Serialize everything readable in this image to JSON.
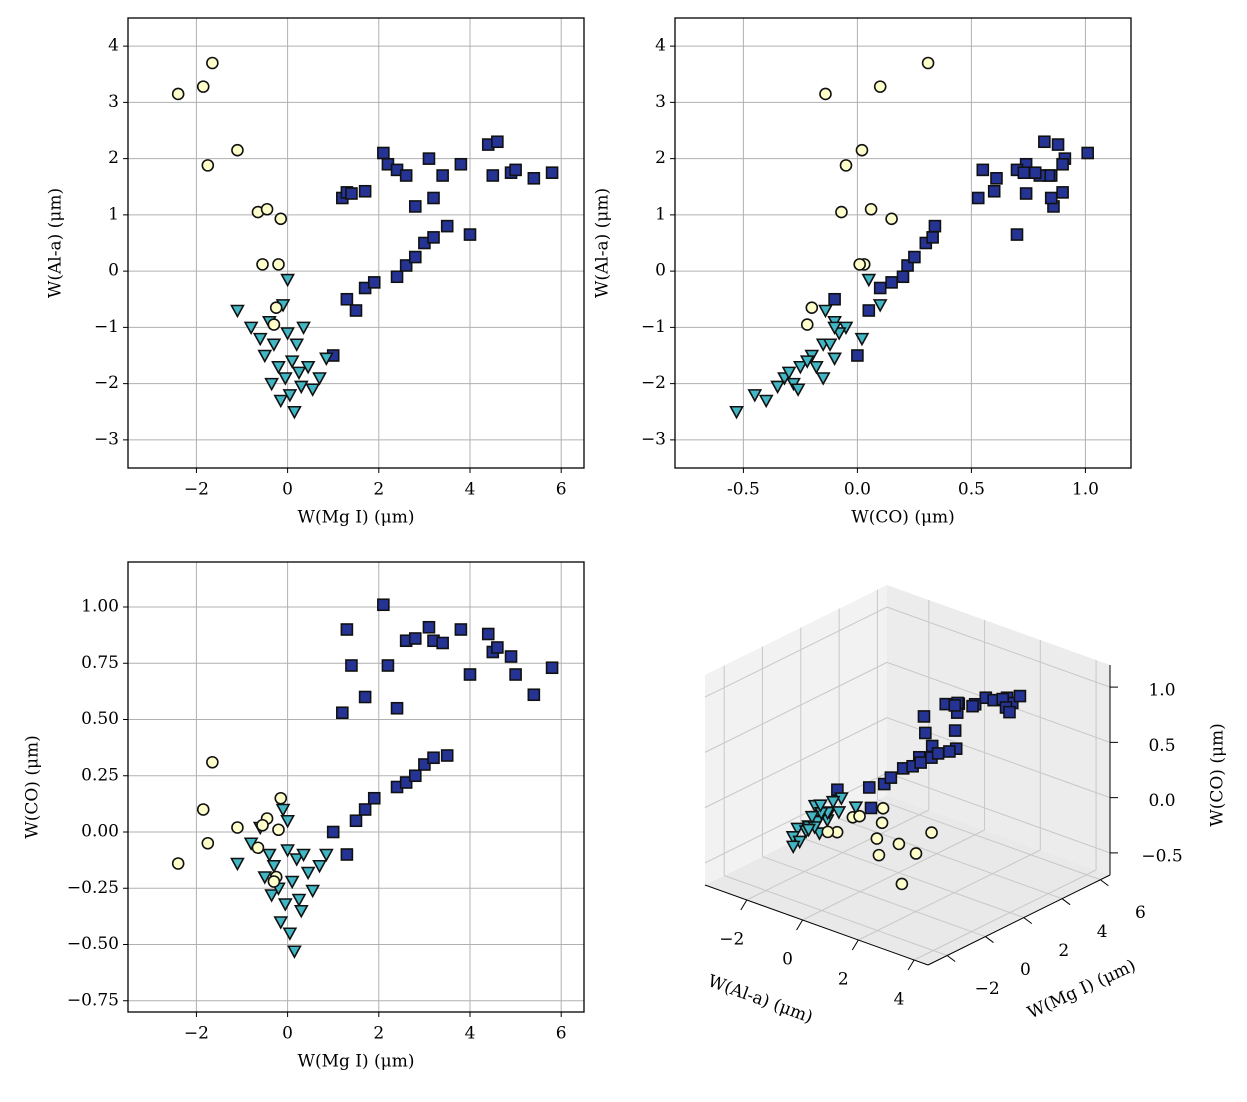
{
  "chart_data": [
    {
      "type": "scatter",
      "xlabel": "W(Mg I) (μm)",
      "ylabel": "W(Al-a) (μm)",
      "xlim": [
        -3.5,
        6.5
      ],
      "xticks": [
        {
          "value": -2,
          "label": "−2"
        },
        0,
        2,
        4,
        6
      ],
      "ylim": [
        -3.5,
        4.5
      ],
      "yticks": [
        {
          "value": -3,
          "label": "−3"
        },
        {
          "value": -2,
          "label": "−2"
        },
        {
          "value": -1,
          "label": "−1"
        },
        0,
        1,
        2,
        3,
        4
      ],
      "grid": true,
      "series": [
        {
          "color": "#253494",
          "marker": "square",
          "x": [
            1.2,
            1.3,
            1.4,
            1.7,
            2.1,
            2.2,
            2.4,
            2.6,
            2.8,
            3.1,
            3.2,
            3.4,
            3.8,
            4.0,
            4.4,
            4.5,
            4.6,
            4.9,
            5.0,
            5.4,
            5.8,
            1.0,
            1.3,
            1.5,
            1.7,
            1.9,
            2.4,
            2.6,
            2.8,
            3.0,
            3.2,
            3.5
          ],
          "values": [
            1.3,
            1.4,
            1.38,
            1.42,
            2.1,
            1.9,
            1.8,
            1.7,
            1.15,
            2.0,
            1.3,
            1.7,
            1.9,
            0.65,
            2.25,
            1.7,
            2.3,
            1.75,
            1.8,
            1.65,
            1.75,
            -1.5,
            -0.5,
            -0.7,
            -0.3,
            -0.2,
            -0.1,
            0.1,
            0.25,
            0.5,
            0.6,
            0.8
          ]
        },
        {
          "color": "#41b6c4",
          "marker": "triangle",
          "x": [
            -1.1,
            -0.8,
            -0.6,
            -0.5,
            -0.4,
            -0.35,
            -0.3,
            -0.2,
            -0.15,
            -0.1,
            -0.05,
            0.0,
            0.0,
            0.05,
            0.1,
            0.15,
            0.2,
            0.25,
            0.3,
            0.35,
            0.45,
            0.55,
            0.7,
            0.85
          ],
          "values": [
            -0.7,
            -1.0,
            -1.2,
            -1.5,
            -0.9,
            -2.0,
            -1.3,
            -1.7,
            -2.3,
            -0.6,
            -1.9,
            -1.1,
            -0.15,
            -2.2,
            -1.6,
            -2.5,
            -1.3,
            -1.8,
            -2.05,
            -1.0,
            -1.7,
            -2.1,
            -1.9,
            -1.55
          ]
        },
        {
          "color": "#ffffcc",
          "marker": "circle",
          "x": [
            -2.4,
            -1.85,
            -1.65,
            -1.75,
            -1.1,
            -0.65,
            -0.45,
            -0.15,
            -0.55,
            -0.2,
            -0.25,
            -0.3
          ],
          "values": [
            3.15,
            3.28,
            3.7,
            1.88,
            2.15,
            1.05,
            1.1,
            0.93,
            0.12,
            0.12,
            -0.65,
            -0.95
          ]
        }
      ]
    },
    {
      "type": "scatter",
      "xlabel": "W(CO) (μm)",
      "ylabel": "W(Al-a) (μm)",
      "xlim": [
        -0.8,
        1.2
      ],
      "xticks": [
        -0.5,
        {
          "value": 0,
          "label": "0.0"
        },
        0.5,
        {
          "value": 1,
          "label": "1.0"
        }
      ],
      "ylim": [
        -3.5,
        4.5
      ],
      "yticks": [
        {
          "value": -3,
          "label": "−3"
        },
        {
          "value": -2,
          "label": "−2"
        },
        {
          "value": -1,
          "label": "−1"
        },
        0,
        1,
        2,
        3,
        4
      ],
      "grid": true,
      "series": [
        {
          "color": "#253494",
          "marker": "square",
          "x": [
            0.53,
            0.9,
            0.74,
            0.6,
            1.01,
            0.74,
            0.55,
            0.85,
            0.86,
            0.91,
            0.85,
            0.84,
            0.9,
            0.7,
            0.88,
            0.8,
            0.82,
            0.78,
            0.7,
            0.61,
            0.73,
            0.0,
            -0.1,
            0.05,
            0.1,
            0.15,
            0.2,
            0.22,
            0.25,
            0.3,
            0.33,
            0.34
          ],
          "values": [
            1.3,
            1.4,
            1.38,
            1.42,
            2.1,
            1.9,
            1.8,
            1.7,
            1.15,
            2.0,
            1.3,
            1.7,
            1.9,
            0.65,
            2.25,
            1.7,
            2.3,
            1.75,
            1.8,
            1.65,
            1.75,
            -1.5,
            -0.5,
            -0.7,
            -0.3,
            -0.2,
            -0.1,
            0.1,
            0.25,
            0.5,
            0.6,
            0.8
          ]
        },
        {
          "color": "#41b6c4",
          "marker": "triangle",
          "x": [
            -0.14,
            -0.05,
            0.02,
            -0.2,
            -0.1,
            -0.28,
            -0.15,
            -0.25,
            -0.4,
            0.1,
            -0.32,
            -0.08,
            0.05,
            -0.45,
            -0.22,
            -0.53,
            -0.12,
            -0.3,
            -0.35,
            -0.1,
            -0.18,
            -0.26,
            -0.15,
            -0.1
          ],
          "values": [
            -0.7,
            -1.0,
            -1.2,
            -1.5,
            -0.9,
            -2.0,
            -1.3,
            -1.7,
            -2.3,
            -0.6,
            -1.9,
            -1.1,
            -0.15,
            -2.2,
            -1.6,
            -2.5,
            -1.3,
            -1.8,
            -2.05,
            -1.0,
            -1.7,
            -2.1,
            -1.9,
            -1.55
          ]
        },
        {
          "color": "#ffffcc",
          "marker": "circle",
          "x": [
            -0.14,
            0.1,
            0.31,
            -0.05,
            0.02,
            -0.07,
            0.06,
            0.15,
            0.03,
            0.01,
            -0.2,
            -0.22
          ],
          "values": [
            3.15,
            3.28,
            3.7,
            1.88,
            2.15,
            1.05,
            1.1,
            0.93,
            0.12,
            0.12,
            -0.65,
            -0.95
          ]
        }
      ]
    },
    {
      "type": "scatter",
      "xlabel": "W(Mg I) (μm)",
      "ylabel": "W(CO) (μm)",
      "xlim": [
        -3.5,
        6.5
      ],
      "xticks": [
        {
          "value": -2,
          "label": "−2"
        },
        0,
        2,
        4,
        6
      ],
      "ylim": [
        -0.8,
        1.2
      ],
      "yticks": [
        {
          "value": -0.75,
          "label": "−0.75"
        },
        {
          "value": -0.5,
          "label": "−0.50"
        },
        {
          "value": -0.25,
          "label": "−0.25"
        },
        {
          "value": 0,
          "label": "0.00"
        },
        0.25,
        {
          "value": 0.5,
          "label": "0.50"
        },
        0.75,
        {
          "value": 1,
          "label": "1.00"
        }
      ],
      "grid": true,
      "series": [
        {
          "color": "#253494",
          "marker": "square",
          "x": [
            1.2,
            1.3,
            1.4,
            1.7,
            2.1,
            2.2,
            2.4,
            2.6,
            2.8,
            3.1,
            3.2,
            3.4,
            3.8,
            4.0,
            4.4,
            4.5,
            4.6,
            4.9,
            5.0,
            5.4,
            5.8,
            1.0,
            1.3,
            1.5,
            1.7,
            1.9,
            2.4,
            2.6,
            2.8,
            3.0,
            3.2,
            3.5
          ],
          "values": [
            0.53,
            0.9,
            0.74,
            0.6,
            1.01,
            0.74,
            0.55,
            0.85,
            0.86,
            0.91,
            0.85,
            0.84,
            0.9,
            0.7,
            0.88,
            0.8,
            0.82,
            0.78,
            0.7,
            0.61,
            0.73,
            0.0,
            -0.1,
            0.05,
            0.1,
            0.15,
            0.2,
            0.22,
            0.25,
            0.3,
            0.33,
            0.34
          ]
        },
        {
          "color": "#41b6c4",
          "marker": "triangle",
          "x": [
            -1.1,
            -0.8,
            -0.6,
            -0.5,
            -0.4,
            -0.35,
            -0.3,
            -0.2,
            -0.15,
            -0.1,
            -0.05,
            0.0,
            0.0,
            0.05,
            0.1,
            0.15,
            0.2,
            0.25,
            0.3,
            0.35,
            0.45,
            0.55,
            0.7,
            0.85
          ],
          "values": [
            -0.14,
            -0.05,
            0.02,
            -0.2,
            -0.1,
            -0.28,
            -0.15,
            -0.25,
            -0.4,
            0.1,
            -0.32,
            -0.08,
            0.05,
            -0.45,
            -0.22,
            -0.53,
            -0.12,
            -0.3,
            -0.35,
            -0.1,
            -0.18,
            -0.26,
            -0.15,
            -0.1
          ]
        },
        {
          "color": "#ffffcc",
          "marker": "circle",
          "x": [
            -2.4,
            -1.85,
            -1.65,
            -1.75,
            -1.1,
            -0.65,
            -0.45,
            -0.15,
            -0.55,
            -0.2,
            -0.25,
            -0.3
          ],
          "values": [
            -0.14,
            0.1,
            0.31,
            -0.05,
            0.02,
            -0.07,
            0.06,
            0.15,
            0.03,
            0.01,
            -0.2,
            -0.22
          ]
        }
      ]
    },
    {
      "type": "scatter3d",
      "xlabel": "W(Al-a) (μm)",
      "ylabel": "W(Mg I) (μm)",
      "zlabel": "W(CO) (μm)",
      "xlim": [
        -3.5,
        4.5
      ],
      "xticks": [
        {
          "value": -2,
          "label": "−2"
        },
        0,
        2,
        4
      ],
      "ylim": [
        -3,
        6.5
      ],
      "yticks": [
        {
          "value": -2,
          "label": "−2"
        },
        0,
        2,
        4,
        6
      ],
      "zlim": [
        -0.7,
        1.2
      ],
      "zticks": [
        {
          "value": -0.5,
          "label": "−0.5"
        },
        {
          "value": 0,
          "label": "0.0"
        },
        0.5,
        {
          "value": 1,
          "label": "1.0"
        }
      ],
      "grid": true,
      "series": [
        {
          "color": "#253494",
          "marker": "square",
          "x": [
            1.3,
            1.4,
            1.38,
            1.42,
            2.1,
            1.9,
            1.8,
            1.7,
            1.15,
            2.0,
            1.3,
            1.7,
            1.9,
            0.65,
            2.25,
            1.7,
            2.3,
            1.75,
            1.8,
            1.65,
            1.75,
            -1.5,
            -0.5,
            -0.7,
            -0.3,
            -0.2,
            -0.1,
            0.1,
            0.25,
            0.5,
            0.6,
            0.8
          ],
          "y": [
            1.2,
            1.3,
            1.4,
            1.7,
            2.1,
            2.2,
            2.4,
            2.6,
            2.8,
            3.1,
            3.2,
            3.4,
            3.8,
            4.0,
            4.4,
            4.5,
            4.6,
            4.9,
            5.0,
            5.4,
            5.8,
            1.0,
            1.3,
            1.5,
            1.7,
            1.9,
            2.4,
            2.6,
            2.8,
            3.0,
            3.2,
            3.5
          ],
          "z": [
            0.53,
            0.9,
            0.74,
            0.6,
            1.01,
            0.74,
            0.55,
            0.85,
            0.86,
            0.91,
            0.85,
            0.84,
            0.9,
            0.7,
            0.88,
            0.8,
            0.82,
            0.78,
            0.7,
            0.61,
            0.73,
            0.0,
            -0.1,
            0.05,
            0.1,
            0.15,
            0.2,
            0.22,
            0.25,
            0.3,
            0.33,
            0.34
          ]
        },
        {
          "color": "#41b6c4",
          "marker": "triangle",
          "x": [
            -0.7,
            -1.0,
            -1.2,
            -1.5,
            -0.9,
            -2.0,
            -1.3,
            -1.7,
            -2.3,
            -0.6,
            -1.9,
            -1.1,
            -0.15,
            -2.2,
            -1.6,
            -2.5,
            -1.3,
            -1.8,
            -2.05,
            -1.0,
            -1.7,
            -2.1,
            -1.9,
            -1.55
          ],
          "y": [
            -1.1,
            -0.8,
            -0.6,
            -0.5,
            -0.4,
            -0.35,
            -0.3,
            -0.2,
            -0.15,
            -0.1,
            -0.05,
            0.0,
            0.0,
            0.05,
            0.1,
            0.15,
            0.2,
            0.25,
            0.3,
            0.35,
            0.45,
            0.55,
            0.7,
            0.85
          ],
          "z": [
            -0.14,
            -0.05,
            0.02,
            -0.2,
            -0.1,
            -0.28,
            -0.15,
            -0.25,
            -0.4,
            0.1,
            -0.32,
            -0.08,
            0.05,
            -0.45,
            -0.22,
            -0.53,
            -0.12,
            -0.3,
            -0.35,
            -0.1,
            -0.18,
            -0.26,
            -0.15,
            -0.1
          ]
        },
        {
          "color": "#ffffcc",
          "marker": "circle",
          "x": [
            3.15,
            3.28,
            3.7,
            1.88,
            2.15,
            1.05,
            1.1,
            0.93,
            0.12,
            0.12,
            -0.65,
            -0.95
          ],
          "y": [
            -2.4,
            -1.85,
            -1.65,
            -1.75,
            -1.1,
            -0.65,
            -0.45,
            -0.15,
            -0.55,
            -0.2,
            -0.25,
            -0.3
          ],
          "z": [
            -0.14,
            0.1,
            0.31,
            -0.05,
            0.02,
            -0.07,
            0.06,
            0.15,
            0.03,
            0.01,
            -0.2,
            -0.22
          ]
        }
      ]
    }
  ]
}
